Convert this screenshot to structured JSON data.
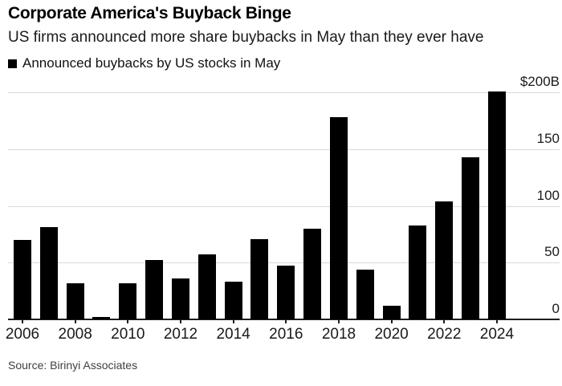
{
  "header": {
    "title": "Corporate America's Buyback Binge",
    "subtitle": "US firms announced more share buybacks in May than they ever have"
  },
  "legend": {
    "label": "Announced buybacks by US stocks in May",
    "swatch_color": "#000000"
  },
  "source": "Source: Birinyi Associates",
  "colors": {
    "bar": "#000000",
    "gridline": "#d9d9d9",
    "baseline": "#1f1f1f",
    "axis_text": "#1a1a1a",
    "source_text": "#3f3f3f"
  },
  "chart_data": {
    "type": "bar",
    "title": "Announced buybacks by US stocks in May",
    "unit": "billions of US dollars",
    "categories": [
      2006,
      2007,
      2008,
      2009,
      2010,
      2011,
      2012,
      2013,
      2014,
      2015,
      2016,
      2017,
      2018,
      2019,
      2020,
      2021,
      2022,
      2023,
      2024
    ],
    "values": [
      70,
      81,
      32,
      2,
      32,
      52,
      36,
      57,
      33,
      71,
      47,
      80,
      178,
      44,
      12,
      83,
      104,
      143,
      201
    ],
    "ylim": [
      0,
      200
    ],
    "y_ticks": [
      {
        "value": 200,
        "label": "$200B"
      },
      {
        "value": 150,
        "label": "150"
      },
      {
        "value": 100,
        "label": "100"
      },
      {
        "value": 50,
        "label": "50"
      },
      {
        "value": 0,
        "label": "0"
      }
    ],
    "x_tick_labels": [
      "2006",
      "2008",
      "2010",
      "2012",
      "2014",
      "2016",
      "2018",
      "2020",
      "2022",
      "2024"
    ],
    "legend_position": "top-left",
    "grid": "horizontal",
    "bar_color": "#000000"
  }
}
